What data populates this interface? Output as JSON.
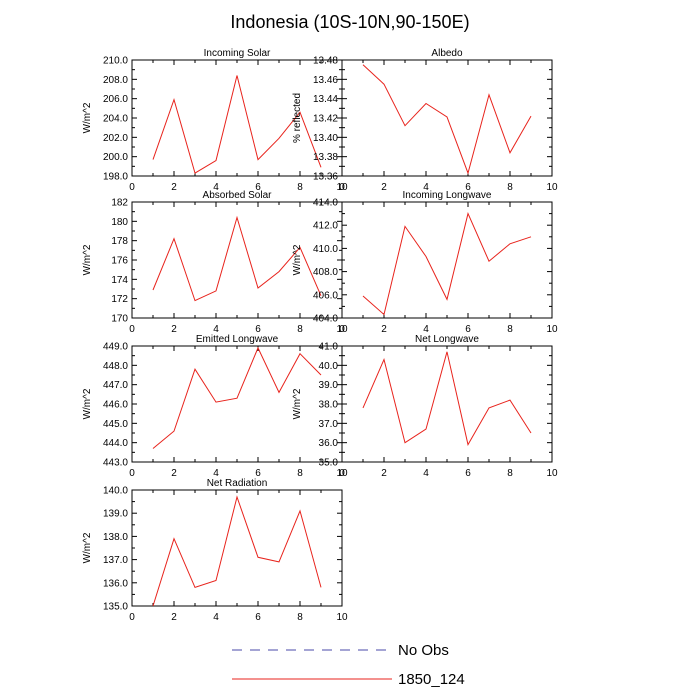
{
  "title": "Indonesia (10S-10N,90-150E)",
  "legend": [
    {
      "label": "No Obs",
      "color": "#4a4aa8",
      "dash": true
    },
    {
      "label": "1850_124",
      "color": "#e8231c",
      "dash": false
    }
  ],
  "chart_data": [
    {
      "type": "line",
      "title": "Incoming Solar",
      "ylabel": "W/m^2",
      "x": [
        1,
        2,
        3,
        4,
        5,
        6,
        7,
        8,
        9
      ],
      "series": [
        {
          "name": "1850_124",
          "color": "#e8231c",
          "values": [
            199.7,
            205.9,
            198.3,
            199.6,
            208.4,
            199.7,
            201.9,
            204.6,
            198.9
          ]
        }
      ],
      "xlim": [
        0,
        10
      ],
      "xticks": [
        0,
        2,
        4,
        6,
        8,
        10
      ],
      "ylim": [
        198.0,
        210.0
      ],
      "yticks": [
        198.0,
        200.0,
        202.0,
        204.0,
        206.0,
        208.0,
        210.0
      ],
      "ydec": 1
    },
    {
      "type": "line",
      "title": "Albedo",
      "ylabel": "% reflected",
      "x": [
        1,
        2,
        3,
        4,
        5,
        6,
        7,
        8,
        9
      ],
      "series": [
        {
          "name": "1850_124",
          "color": "#e8231c",
          "values": [
            13.475,
            13.455,
            13.412,
            13.435,
            13.421,
            13.363,
            13.444,
            13.384,
            13.422
          ]
        }
      ],
      "xlim": [
        0,
        10
      ],
      "xticks": [
        0,
        2,
        4,
        6,
        8,
        10
      ],
      "ylim": [
        13.36,
        13.48
      ],
      "yticks": [
        13.36,
        13.38,
        13.4,
        13.42,
        13.44,
        13.46,
        13.48
      ],
      "ydec": 2
    },
    {
      "type": "line",
      "title": "Absorbed Solar",
      "ylabel": "W/m^2",
      "x": [
        1,
        2,
        3,
        4,
        5,
        6,
        7,
        8,
        9
      ],
      "series": [
        {
          "name": "1850_124",
          "color": "#e8231c",
          "values": [
            172.9,
            178.2,
            171.8,
            172.8,
            180.4,
            173.1,
            174.8,
            177.3,
            172.3
          ]
        }
      ],
      "xlim": [
        0,
        10
      ],
      "xticks": [
        0,
        2,
        4,
        6,
        8,
        10
      ],
      "ylim": [
        170,
        182
      ],
      "yticks": [
        170,
        172,
        174,
        176,
        178,
        180,
        182
      ],
      "ydec": 0
    },
    {
      "type": "line",
      "title": "Incoming Longwave",
      "ylabel": "W/m^2",
      "x": [
        1,
        2,
        3,
        4,
        5,
        6,
        7,
        8,
        9
      ],
      "series": [
        {
          "name": "1850_124",
          "color": "#e8231c",
          "values": [
            405.9,
            404.3,
            411.9,
            409.3,
            405.6,
            413.0,
            408.9,
            410.4,
            411.0
          ]
        }
      ],
      "xlim": [
        0,
        10
      ],
      "xticks": [
        0,
        2,
        4,
        6,
        8,
        10
      ],
      "ylim": [
        404.0,
        414.0
      ],
      "yticks": [
        404.0,
        406.0,
        408.0,
        410.0,
        412.0,
        414.0
      ],
      "ydec": 1
    },
    {
      "type": "line",
      "title": "Emitted Longwave",
      "ylabel": "W/m^2",
      "x": [
        1,
        2,
        3,
        4,
        5,
        6,
        7,
        8,
        9
      ],
      "series": [
        {
          "name": "1850_124",
          "color": "#e8231c",
          "values": [
            443.7,
            444.6,
            447.8,
            446.1,
            446.3,
            448.9,
            446.6,
            448.6,
            447.5
          ]
        }
      ],
      "xlim": [
        0,
        10
      ],
      "xticks": [
        0,
        2,
        4,
        6,
        8,
        10
      ],
      "ylim": [
        443.0,
        449.0
      ],
      "yticks": [
        443.0,
        444.0,
        445.0,
        446.0,
        447.0,
        448.0,
        449.0
      ],
      "ydec": 1
    },
    {
      "type": "line",
      "title": "Net Longwave",
      "ylabel": "W/m^2",
      "x": [
        1,
        2,
        3,
        4,
        5,
        6,
        7,
        8,
        9
      ],
      "series": [
        {
          "name": "1850_124",
          "color": "#e8231c",
          "values": [
            37.8,
            40.3,
            36.0,
            36.7,
            40.7,
            35.9,
            37.8,
            38.2,
            36.5
          ]
        }
      ],
      "xlim": [
        0,
        10
      ],
      "xticks": [
        0,
        2,
        4,
        6,
        8,
        10
      ],
      "ylim": [
        35.0,
        41.0
      ],
      "yticks": [
        35.0,
        36.0,
        37.0,
        38.0,
        39.0,
        40.0,
        41.0
      ],
      "ydec": 1
    },
    {
      "type": "line",
      "title": "Net Radiation",
      "ylabel": "W/m^2",
      "x": [
        1,
        2,
        3,
        4,
        5,
        6,
        7,
        8,
        9
      ],
      "series": [
        {
          "name": "1850_124",
          "color": "#e8231c",
          "values": [
            135.0,
            137.9,
            135.8,
            136.1,
            139.7,
            137.1,
            136.9,
            139.1,
            135.8
          ]
        }
      ],
      "xlim": [
        0,
        10
      ],
      "xticks": [
        0,
        2,
        4,
        6,
        8,
        10
      ],
      "ylim": [
        135.0,
        140.0
      ],
      "yticks": [
        135.0,
        136.0,
        137.0,
        138.0,
        139.0,
        140.0
      ],
      "ydec": 1
    }
  ]
}
